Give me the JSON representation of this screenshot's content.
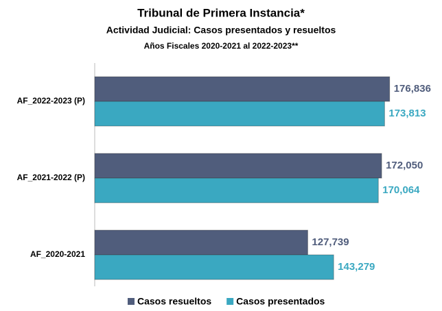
{
  "chart_data": {
    "type": "hbar",
    "title": "Tribunal de Primera Instancia*",
    "subtitle": "Actividad Judicial: Casos presentados y resueltos",
    "subtitle2": "Años Fiscales 2020-2021 al 2022-2023**",
    "categories": [
      "AF_2022-2023 (P)",
      "AF_2021-2022 (P)",
      "AF_2020-2021"
    ],
    "series": [
      {
        "name": "Casos resueltos",
        "color": "#505d7c",
        "values": [
          176836,
          172050,
          127739
        ],
        "value_labels": [
          "176,836",
          "172,050",
          "127,739"
        ]
      },
      {
        "name": "Casos presentados",
        "color": "#3aa8c1",
        "values": [
          173813,
          170064,
          143279
        ],
        "value_labels": [
          "173,813",
          "170,064",
          "143,279"
        ]
      }
    ],
    "xlim": [
      0,
      200000
    ]
  }
}
